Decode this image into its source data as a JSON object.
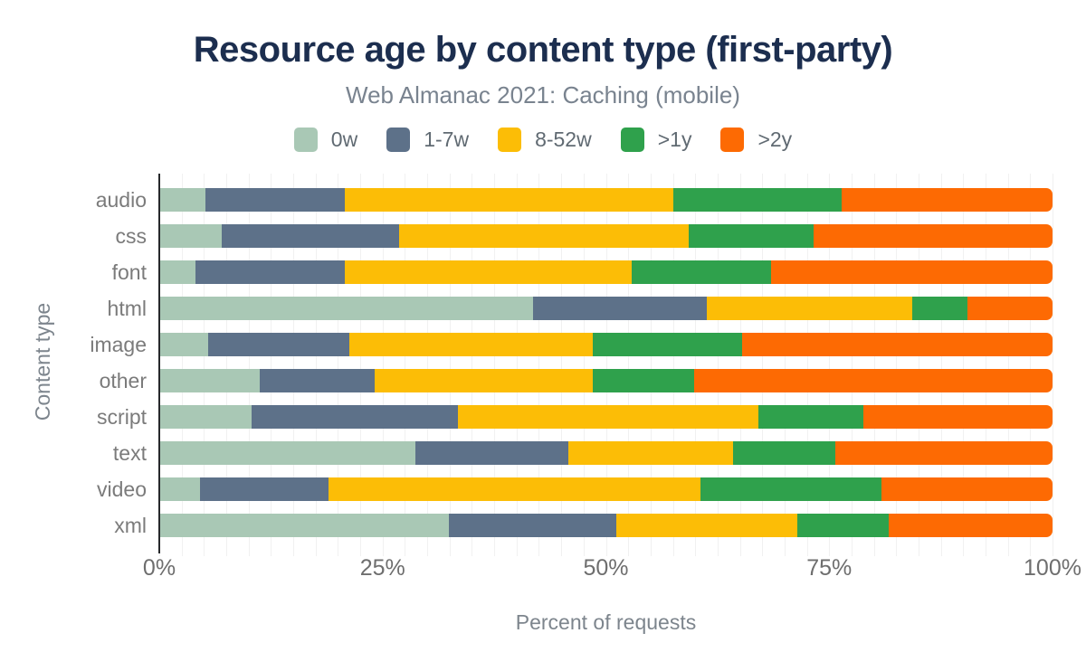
{
  "header": {
    "title": "Resource age by content type (first-party)",
    "subtitle": "Web Almanac 2021: Caching (mobile)"
  },
  "chart_data": {
    "type": "bar",
    "orientation": "horizontal",
    "stacked": true,
    "title": "Resource age by content type (first-party)",
    "subtitle": "Web Almanac 2021: Caching (mobile)",
    "xlabel": "Percent of requests",
    "ylabel": "Content type",
    "xlim": [
      0,
      100
    ],
    "x_ticks": [
      {
        "value": 0,
        "label": "0%"
      },
      {
        "value": 25,
        "label": "25%"
      },
      {
        "value": 50,
        "label": "50%"
      },
      {
        "value": 75,
        "label": "75%"
      },
      {
        "value": 100,
        "label": "100%"
      }
    ],
    "grid": "minor-vertical-every-2.5",
    "legend_position": "top",
    "categories": [
      "audio",
      "css",
      "font",
      "html",
      "image",
      "other",
      "script",
      "text",
      "video",
      "xml"
    ],
    "series": [
      {
        "name": "0w",
        "color": "#a9c8b5",
        "values": [
          5.2,
          7.0,
          4.1,
          41.8,
          5.5,
          11.2,
          10.3,
          28.7,
          4.6,
          32.4
        ]
      },
      {
        "name": "1-7w",
        "color": "#5d7189",
        "values": [
          15.6,
          19.9,
          16.7,
          19.5,
          15.8,
          12.9,
          23.1,
          17.1,
          14.3,
          18.8
        ]
      },
      {
        "name": "8-52w",
        "color": "#fcbd06",
        "values": [
          36.7,
          32.4,
          32.1,
          23.0,
          27.2,
          24.4,
          33.7,
          18.4,
          41.7,
          20.2
        ]
      },
      {
        "name": ">1y",
        "color": "#2fa14c",
        "values": [
          18.9,
          14.0,
          15.6,
          6.2,
          16.8,
          11.4,
          11.7,
          11.5,
          20.3,
          10.3
        ]
      },
      {
        "name": ">2y",
        "color": "#fd6a03",
        "values": [
          23.6,
          26.7,
          31.5,
          9.5,
          34.7,
          40.1,
          21.2,
          24.3,
          19.1,
          18.3
        ]
      }
    ]
  },
  "colors": {
    "title": "#1c2e4f",
    "subtitle": "#79838f",
    "axis_text": "#6e6e6e",
    "category_text": "#7b7b7b",
    "axis_line": "#26282b",
    "gridline": "rgba(0,0,0,0.055)",
    "background": "#ffffff"
  }
}
